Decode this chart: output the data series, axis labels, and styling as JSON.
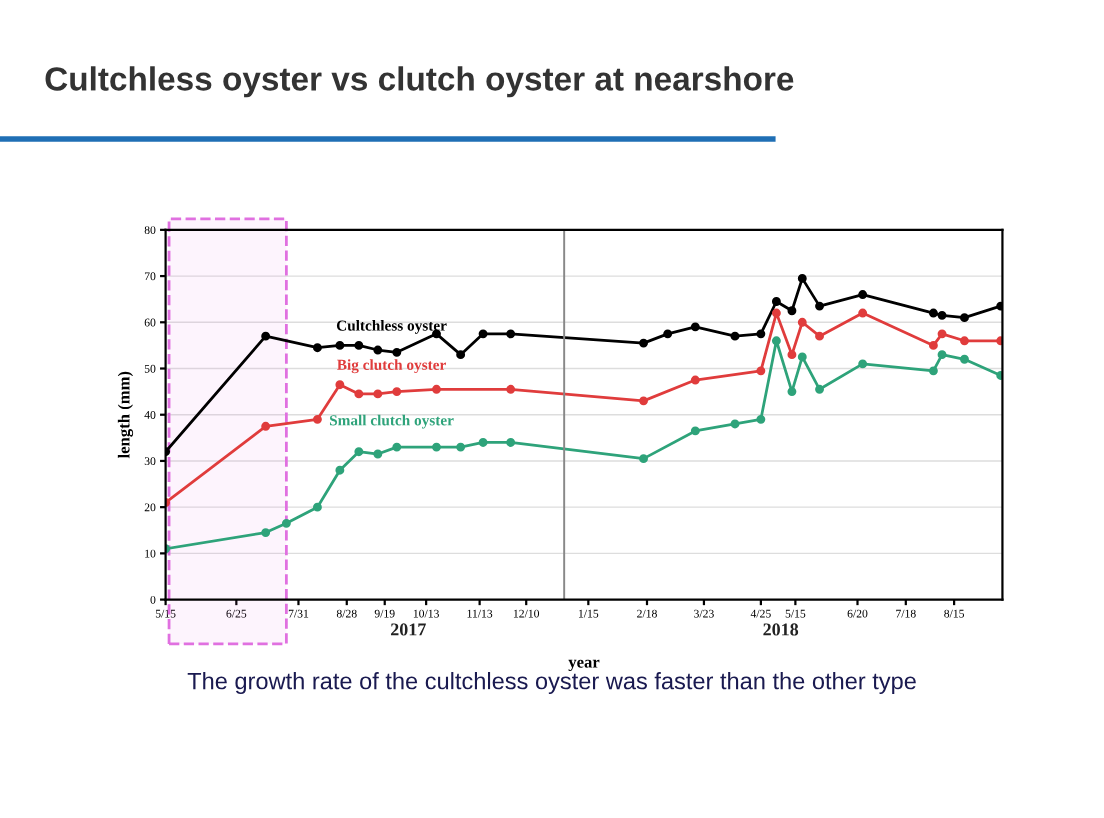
{
  "chart_data": {
    "type": "line",
    "title": "Cultchless oyster vs clutch oyster at nearshore",
    "xlabel": "year",
    "ylabel": "length (mm)",
    "annotations": [
      "2017",
      "2018",
      "The growth rate of the cultchless oyster was faster than the other type"
    ],
    "xlim": [
      "2017-05-15",
      "2018-09-12"
    ],
    "ylim": [
      0,
      80
    ],
    "xticks": [
      {
        "value": "2017-05-15",
        "label": "5/15"
      },
      {
        "value": "2017-06-25",
        "label": "6/25"
      },
      {
        "value": "2017-07-31",
        "label": "7/31"
      },
      {
        "value": "2017-08-28",
        "label": "8/28"
      },
      {
        "value": "2017-09-19",
        "label": "9/19"
      },
      {
        "value": "2017-10-13",
        "label": "10/13"
      },
      {
        "value": "2017-11-13",
        "label": "11/13"
      },
      {
        "value": "2017-12-10",
        "label": "12/10"
      },
      {
        "value": "2018-01-15",
        "label": "1/15"
      },
      {
        "value": "2018-02-18",
        "label": "2/18"
      },
      {
        "value": "2018-03-23",
        "label": "3/23"
      },
      {
        "value": "2018-04-25",
        "label": "4/25"
      },
      {
        "value": "2018-05-15",
        "label": "5/15"
      },
      {
        "value": "2018-06-20",
        "label": "6/20"
      },
      {
        "value": "2018-07-18",
        "label": "7/18"
      },
      {
        "value": "2018-08-15",
        "label": "8/15"
      }
    ],
    "yticks": [
      0,
      10,
      20,
      30,
      40,
      50,
      60,
      70,
      80
    ],
    "grid": "y",
    "marker": "circle",
    "line_style": "solid",
    "ref_lines": [
      {
        "axis": "x",
        "value": "2018-01-01",
        "color": "#888888"
      }
    ],
    "bands": [
      {
        "axis": "x",
        "from": "2017-05-17",
        "to": "2017-07-24",
        "color": "#e070e0"
      }
    ],
    "series": [
      {
        "name": "Cultchless oyster",
        "color": "#000000",
        "x": [
          "2017-05-15",
          "2017-07-12",
          "2017-08-11",
          "2017-08-24",
          "2017-09-04",
          "2017-09-15",
          "2017-09-26",
          "2017-10-19",
          "2017-11-02",
          "2017-11-15",
          "2017-12-01",
          "2018-02-16",
          "2018-03-02",
          "2018-03-18",
          "2018-04-10",
          "2018-04-25",
          "2018-05-04",
          "2018-05-13",
          "2018-05-19",
          "2018-05-29",
          "2018-06-23",
          "2018-08-03",
          "2018-08-08",
          "2018-08-21",
          "2018-09-11"
        ],
        "values": [
          32,
          57,
          54.5,
          55,
          55,
          54,
          53.5,
          57.5,
          53,
          57.5,
          57.5,
          55.5,
          57.5,
          59,
          57,
          57.5,
          64.5,
          62.5,
          69.5,
          63.5,
          66,
          62,
          61.5,
          61,
          63.5
        ]
      },
      {
        "name": "Big clutch oyster",
        "color": "#e03c3c",
        "x": [
          "2017-05-15",
          "2017-07-12",
          "2017-08-11",
          "2017-08-24",
          "2017-09-04",
          "2017-09-15",
          "2017-09-26",
          "2017-10-19",
          "2017-12-01",
          "2018-02-16",
          "2018-03-18",
          "2018-04-25",
          "2018-05-04",
          "2018-05-13",
          "2018-05-19",
          "2018-05-29",
          "2018-06-23",
          "2018-08-03",
          "2018-08-08",
          "2018-08-21",
          "2018-09-11"
        ],
        "values": [
          21,
          37.5,
          39,
          46.5,
          44.5,
          44.5,
          45,
          45.5,
          45.5,
          43,
          47.5,
          49.5,
          62,
          53,
          60,
          57,
          62,
          55,
          57.5,
          56,
          56
        ]
      },
      {
        "name": "Small clutch oyster",
        "color": "#2ea37a",
        "x": [
          "2017-05-15",
          "2017-07-12",
          "2017-07-24",
          "2017-08-11",
          "2017-08-24",
          "2017-09-04",
          "2017-09-15",
          "2017-09-26",
          "2017-10-19",
          "2017-11-02",
          "2017-11-15",
          "2017-12-01",
          "2018-02-16",
          "2018-03-18",
          "2018-04-10",
          "2018-04-25",
          "2018-05-04",
          "2018-05-13",
          "2018-05-19",
          "2018-05-29",
          "2018-06-23",
          "2018-08-03",
          "2018-08-08",
          "2018-08-21",
          "2018-09-11"
        ],
        "values": [
          11,
          14.5,
          16.5,
          20,
          28,
          32,
          31.5,
          33,
          33,
          33,
          34,
          34,
          30.5,
          36.5,
          38,
          39,
          56,
          45,
          52.5,
          45.5,
          51,
          49.5,
          53,
          52,
          48.5
        ]
      }
    ]
  }
}
